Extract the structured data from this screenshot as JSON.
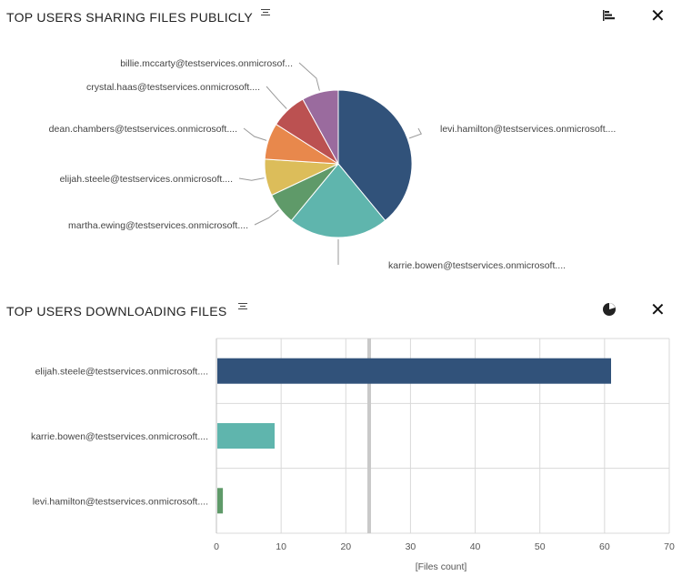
{
  "panels": {
    "sharing": {
      "title": "TOP USERS SHARING FILES PUBLICLY",
      "menu_icon": "list-menu-icon",
      "switch_icon": "bar-chart-icon",
      "close_icon": "close-icon",
      "close_glyph": "✕"
    },
    "downloading": {
      "title": "TOP USERS DOWNLOADING FILES",
      "menu_icon": "list-menu-icon",
      "switch_icon": "pie-chart-icon",
      "close_icon": "close-icon",
      "close_glyph": "✕"
    }
  },
  "colors": {
    "navy": "#31527a",
    "teal": "#5fb5ad",
    "green": "#5f9a69",
    "yellow": "#dcbd5a",
    "orange": "#e8884c",
    "red": "#bb5151",
    "purple": "#9a6b9e",
    "grid": "#d9d9d9",
    "highlight": "#c9c9c9"
  },
  "chart_data": [
    {
      "type": "pie",
      "slices": [
        {
          "label": "levi.hamilton@testservices.onmicrosoft....",
          "value": 39,
          "color": "#31527a"
        },
        {
          "label": "karrie.bowen@testservices.onmicrosoft....",
          "value": 22,
          "color": "#5fb5ad"
        },
        {
          "label": "martha.ewing@testservices.onmicrosoft....",
          "value": 7,
          "color": "#5f9a69"
        },
        {
          "label": "elijah.steele@testservices.onmicrosoft....",
          "value": 8,
          "color": "#dcbd5a"
        },
        {
          "label": "dean.chambers@testservices.onmicrosoft....",
          "value": 8,
          "color": "#e8884c"
        },
        {
          "label": "crystal.haas@testservices.onmicrosoft....",
          "value": 8,
          "color": "#bb5151"
        },
        {
          "label": "billie.mccarty@testservices.onmicrosof...",
          "value": 8,
          "color": "#9a6b9e"
        }
      ]
    },
    {
      "type": "bar",
      "orientation": "horizontal",
      "categories": [
        "elijah.steele@testservices.onmicrosoft....",
        "karrie.bowen@testservices.onmicrosoft....",
        "levi.hamilton@testservices.onmicrosoft...."
      ],
      "values": [
        61,
        9,
        1
      ],
      "colors": [
        "#31527a",
        "#5fb5ad",
        "#5f9a69"
      ],
      "xlim": [
        0,
        70
      ],
      "xticks": [
        0,
        10,
        20,
        30,
        40,
        50,
        60,
        70
      ],
      "xlabel": "[Files count]",
      "grid": true
    }
  ]
}
